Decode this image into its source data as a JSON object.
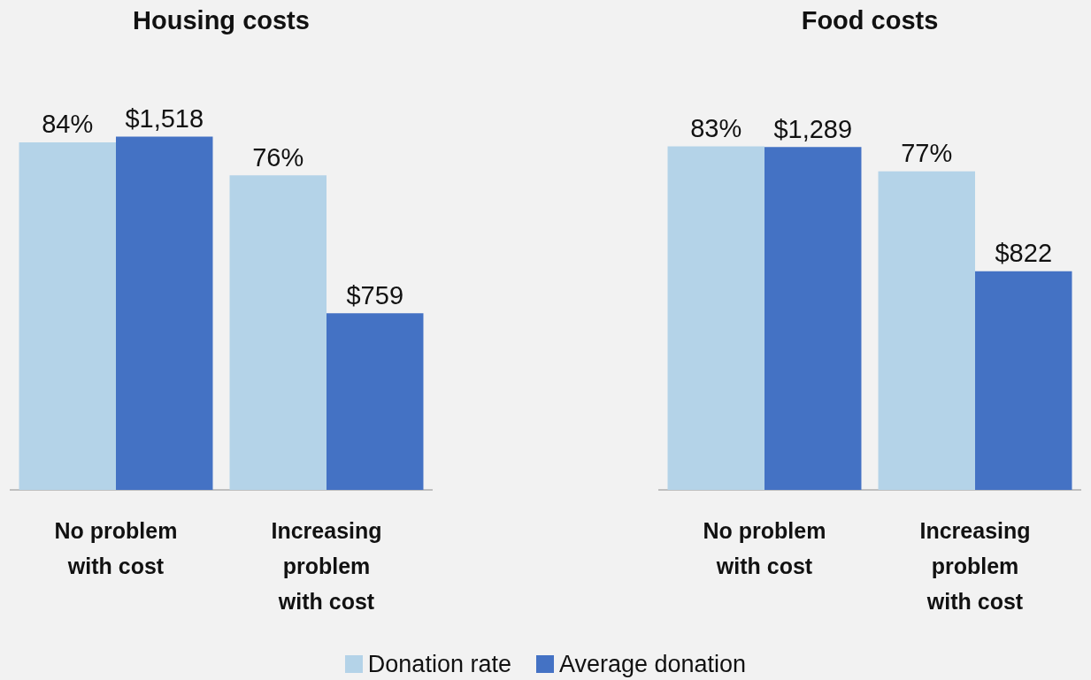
{
  "chart_data": [
    {
      "type": "bar",
      "title": "Housing costs",
      "categories": [
        "No problem with cost",
        "Increasing problem with cost"
      ],
      "series": [
        {
          "name": "Donation rate",
          "color": "#b4d3e8",
          "values": [
            84,
            76
          ],
          "value_labels": [
            "84%",
            "76%"
          ]
        },
        {
          "name": "Average donation",
          "color": "#4472c4",
          "values": [
            1518,
            759
          ],
          "value_labels": [
            "$1,518",
            "$759"
          ],
          "axis": "y2"
        }
      ],
      "tick_labels": "x",
      "grid": false,
      "legend": "bottom"
    },
    {
      "type": "bar",
      "title": "Food costs",
      "categories": [
        "No problem with cost",
        "Increasing problem with cost"
      ],
      "series": [
        {
          "color": "#b4d3e8",
          "values": [
            83,
            77
          ],
          "value_labels": [
            "83%",
            "77%"
          ]
        },
        {
          "color": "#4472c4",
          "values": [
            1289,
            822
          ],
          "value_labels": [
            "$1,289",
            "$822"
          ],
          "axis": "y2"
        }
      ],
      "tick_labels": "x",
      "grid": false
    }
  ]
}
